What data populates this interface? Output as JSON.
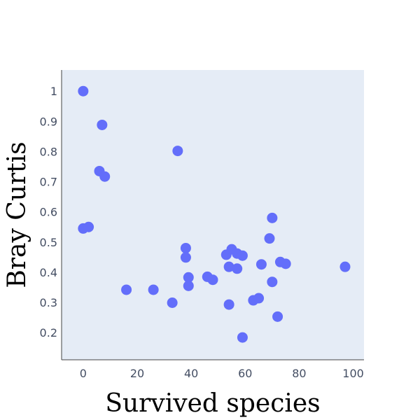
{
  "chart_data": {
    "type": "scatter",
    "title": "",
    "xlabel": "Survived species",
    "ylabel": "Bray Curtis",
    "xlim": [
      -8,
      104
    ],
    "ylim": [
      0.11,
      1.07
    ],
    "x_ticks": [
      0,
      20,
      40,
      60,
      80,
      100
    ],
    "y_ticks": [
      0.2,
      0.3,
      0.4,
      0.5,
      0.6,
      0.7,
      0.8,
      0.9,
      1
    ],
    "x_tick_labels": [
      "0",
      "20",
      "40",
      "60",
      "80",
      "100"
    ],
    "y_tick_labels": [
      "0.2",
      "0.3",
      "0.4",
      "0.5",
      "0.6",
      "0.7",
      "0.8",
      "0.9",
      "1"
    ],
    "grid": false,
    "legend": "none",
    "colors": {
      "marker": "#636efa",
      "plot_background": "#e5ecf6",
      "axis_line": "#444444",
      "tick_text": "#444e63"
    },
    "series": [
      {
        "points": [
          [
            0,
            1.0
          ],
          [
            7,
            0.888
          ],
          [
            6,
            0.735
          ],
          [
            8,
            0.717
          ],
          [
            0,
            0.545
          ],
          [
            2,
            0.55
          ],
          [
            35,
            0.802
          ],
          [
            16,
            0.342
          ],
          [
            26,
            0.342
          ],
          [
            33,
            0.299
          ],
          [
            38,
            0.48
          ],
          [
            38,
            0.449
          ],
          [
            39,
            0.383
          ],
          [
            39,
            0.355
          ],
          [
            46,
            0.385
          ],
          [
            48,
            0.375
          ],
          [
            53,
            0.458
          ],
          [
            55,
            0.476
          ],
          [
            57,
            0.462
          ],
          [
            59,
            0.455
          ],
          [
            54,
            0.418
          ],
          [
            57,
            0.412
          ],
          [
            54,
            0.293
          ],
          [
            59,
            0.184
          ],
          [
            63,
            0.307
          ],
          [
            65,
            0.314
          ],
          [
            66,
            0.426
          ],
          [
            69,
            0.512
          ],
          [
            70,
            0.58
          ],
          [
            70,
            0.368
          ],
          [
            72,
            0.253
          ],
          [
            73,
            0.434
          ],
          [
            75,
            0.428
          ],
          [
            97,
            0.418
          ]
        ]
      }
    ]
  }
}
